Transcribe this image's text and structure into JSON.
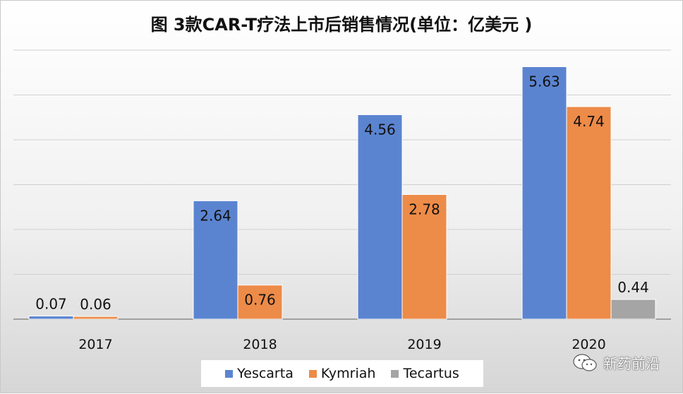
{
  "chart_data": {
    "type": "bar",
    "title": "图 3款CAR-T疗法上市后销售情况(单位：亿美元 )",
    "categories": [
      "2017",
      "2018",
      "2019",
      "2020"
    ],
    "series": [
      {
        "name": "Yescarta",
        "color": "#5b84d0",
        "values": [
          0.07,
          2.64,
          4.56,
          5.63
        ]
      },
      {
        "name": "Kymriah",
        "color": "#ed8b48",
        "values": [
          0.06,
          0.76,
          2.78,
          4.74
        ]
      },
      {
        "name": "Tecartus",
        "color": "#a5a5a5",
        "values": [
          null,
          null,
          null,
          0.44
        ]
      }
    ],
    "value_labels": [
      [
        "0.07",
        "2.64",
        "4.56",
        "5.63"
      ],
      [
        "0.06",
        "0.76",
        "2.78",
        "4.74"
      ],
      [
        "",
        "",
        "",
        "0.44"
      ]
    ],
    "ylim": [
      0,
      6
    ],
    "grid": true,
    "legend_position": "bottom"
  },
  "watermark": {
    "text": "新药前沿",
    "icon": "wechat-icon"
  }
}
